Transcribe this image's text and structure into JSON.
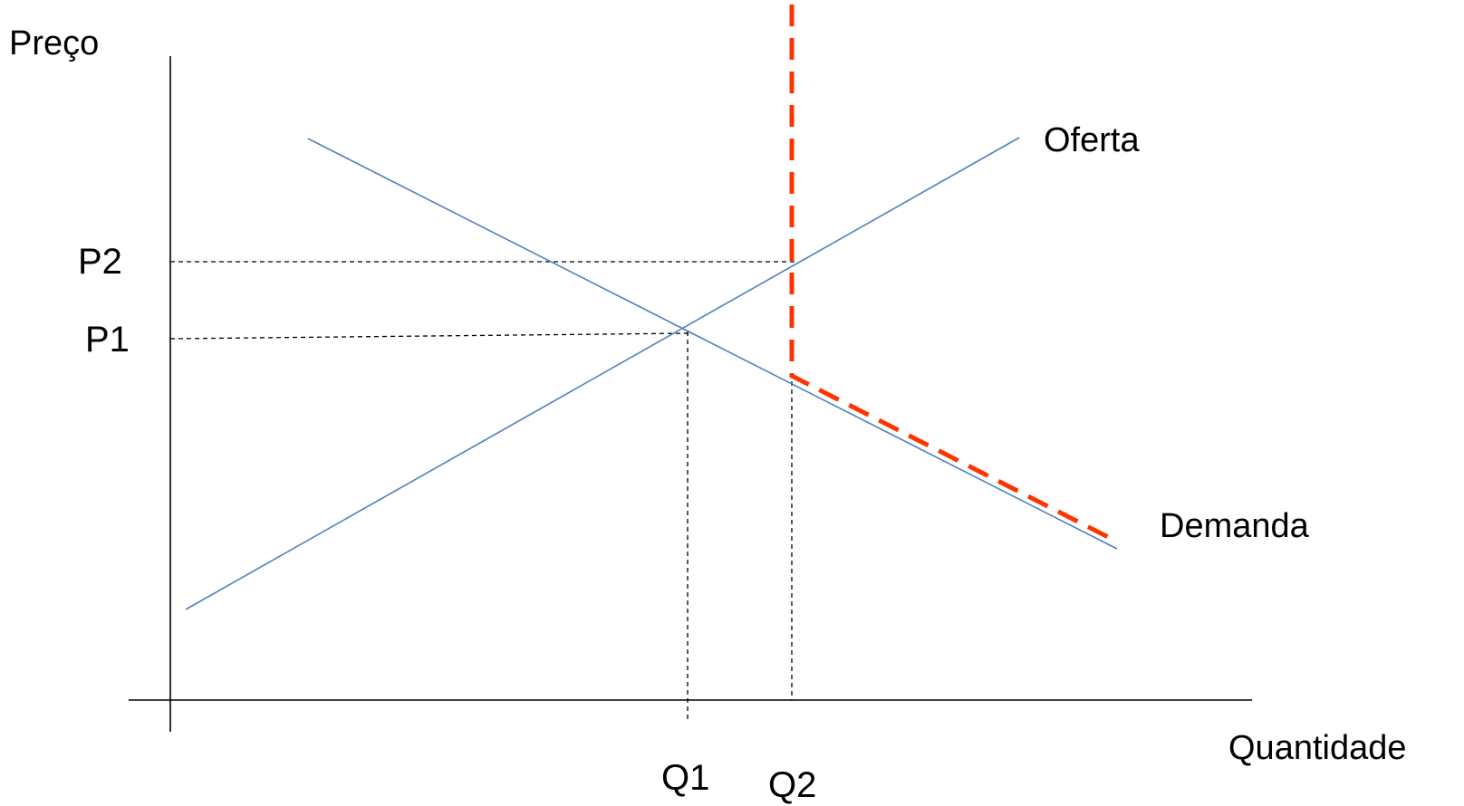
{
  "labels": {
    "y_axis": "Preço",
    "x_axis": "Quantidade",
    "supply": "Oferta",
    "demand": "Demanda",
    "p1": "P1",
    "p2": "P2",
    "q1": "Q1",
    "q2": "Q2"
  },
  "colors": {
    "axes": "#000000",
    "curves": "#4f81bd",
    "kinked_curve": "#ff3300",
    "text": "#000000"
  }
}
